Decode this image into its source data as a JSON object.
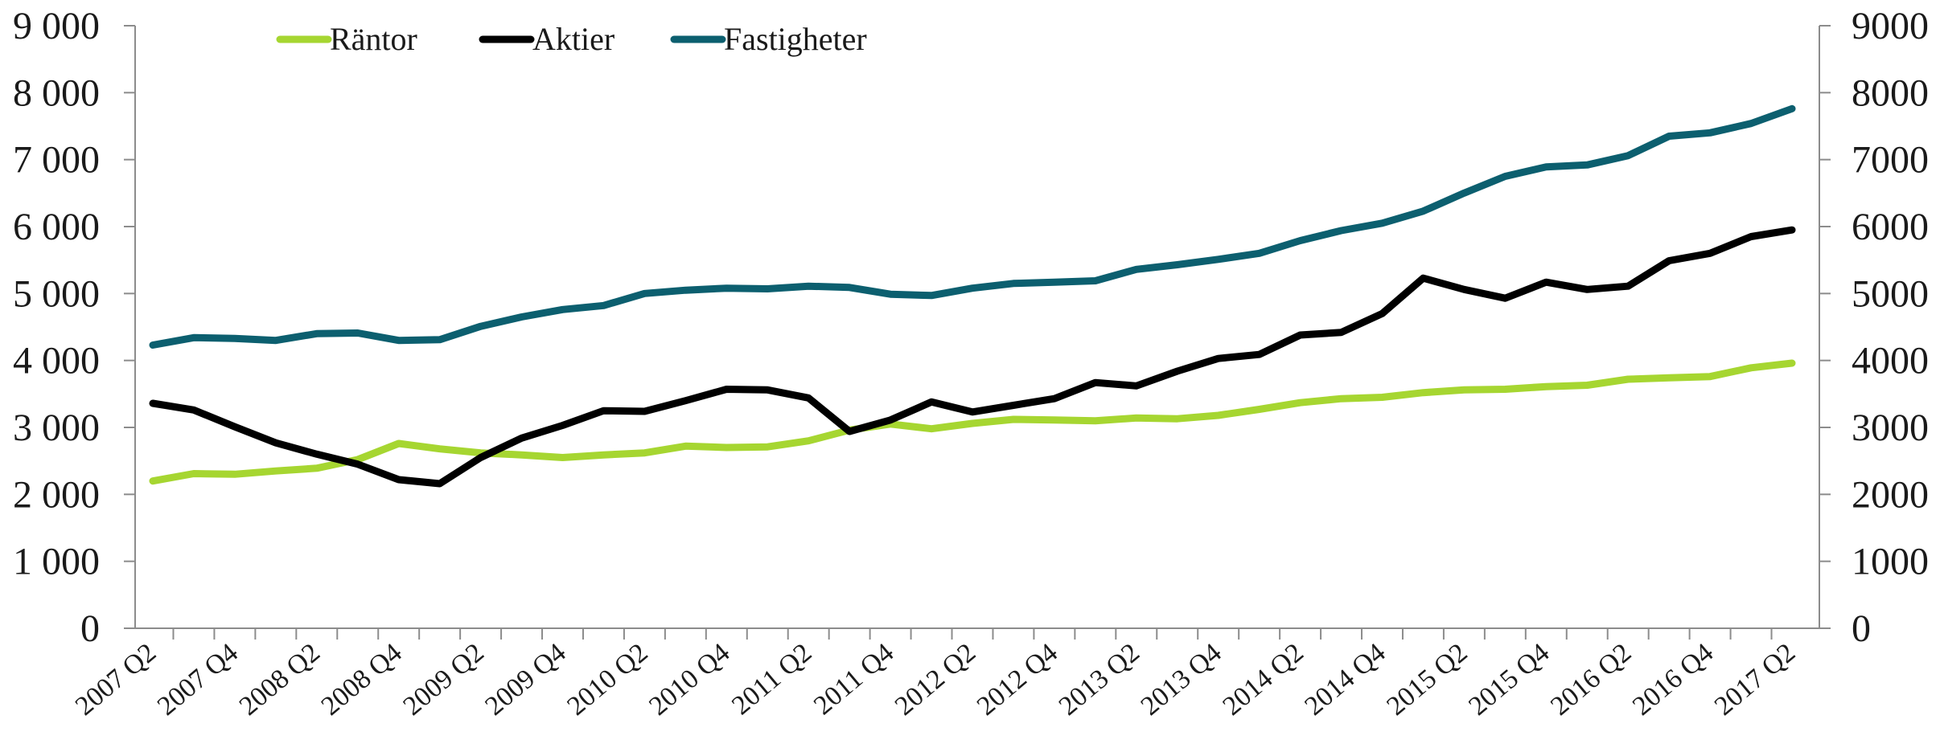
{
  "chart_data": {
    "type": "line",
    "legend_position": "top-left",
    "grid": false,
    "ylim": [
      0,
      9000
    ],
    "y_ticks": [
      0,
      1000,
      2000,
      3000,
      4000,
      5000,
      6000,
      7000,
      8000,
      9000
    ],
    "y_tick_labels_left": [
      "0",
      "1 000",
      "2 000",
      "3 000",
      "4 000",
      "5 000",
      "6 000",
      "7 000",
      "8 000",
      "9 000"
    ],
    "y_tick_labels_right": [
      "0",
      "1000",
      "2000",
      "3000",
      "4000",
      "5000",
      "6000",
      "7000",
      "8000",
      "9000"
    ],
    "x_tick_labels": [
      "2007 Q2",
      "2007 Q4",
      "2008 Q2",
      "2008 Q4",
      "2009 Q2",
      "2009 Q4",
      "2010 Q2",
      "2010 Q4",
      "2011 Q2",
      "2011 Q4",
      "2012 Q2",
      "2012 Q4",
      "2013 Q2",
      "2013 Q4",
      "2014 Q2",
      "2014 Q4",
      "2015 Q2",
      "2015 Q4",
      "2016 Q2",
      "2016 Q4",
      "2017 Q2"
    ],
    "categories": [
      "2007 Q2",
      "2007 Q3",
      "2007 Q4",
      "2008 Q1",
      "2008 Q2",
      "2008 Q3",
      "2008 Q4",
      "2009 Q1",
      "2009 Q2",
      "2009 Q3",
      "2009 Q4",
      "2010 Q1",
      "2010 Q2",
      "2010 Q3",
      "2010 Q4",
      "2011 Q1",
      "2011 Q2",
      "2011 Q3",
      "2011 Q4",
      "2012 Q1",
      "2012 Q2",
      "2012 Q3",
      "2012 Q4",
      "2013 Q1",
      "2013 Q2",
      "2013 Q3",
      "2013 Q4",
      "2014 Q1",
      "2014 Q2",
      "2014 Q3",
      "2014 Q4",
      "2015 Q1",
      "2015 Q2",
      "2015 Q3",
      "2015 Q4",
      "2016 Q1",
      "2016 Q2",
      "2016 Q3",
      "2016 Q4",
      "2017 Q1",
      "2017 Q2"
    ],
    "series": [
      {
        "name": "Räntor",
        "color": "#a6d631",
        "values": [
          2200,
          2310,
          2300,
          2350,
          2390,
          2520,
          2760,
          2680,
          2620,
          2590,
          2550,
          2590,
          2620,
          2720,
          2700,
          2710,
          2800,
          2960,
          3050,
          2980,
          3060,
          3120,
          3110,
          3100,
          3140,
          3130,
          3180,
          3270,
          3370,
          3430,
          3450,
          3520,
          3560,
          3570,
          3610,
          3630,
          3720,
          3740,
          3760,
          3890,
          3960
        ]
      },
      {
        "name": "Aktier",
        "color": "#000000",
        "values": [
          3360,
          3260,
          3010,
          2770,
          2600,
          2450,
          2220,
          2160,
          2550,
          2840,
          3030,
          3250,
          3240,
          3400,
          3570,
          3560,
          3440,
          2940,
          3110,
          3380,
          3230,
          3330,
          3430,
          3670,
          3620,
          3840,
          4030,
          4090,
          4380,
          4420,
          4700,
          5230,
          5060,
          4930,
          5170,
          5060,
          5110,
          5490,
          5600,
          5850,
          5950
        ]
      },
      {
        "name": "Fastigheter",
        "color": "#0c5f6f",
        "values": [
          4230,
          4340,
          4330,
          4300,
          4400,
          4410,
          4300,
          4310,
          4510,
          4650,
          4760,
          4820,
          5000,
          5050,
          5080,
          5070,
          5110,
          5090,
          4990,
          4970,
          5080,
          5150,
          5170,
          5190,
          5360,
          5430,
          5510,
          5600,
          5790,
          5940,
          6050,
          6230,
          6500,
          6750,
          6890,
          6920,
          7060,
          7350,
          7400,
          7540,
          7760
        ]
      }
    ]
  }
}
